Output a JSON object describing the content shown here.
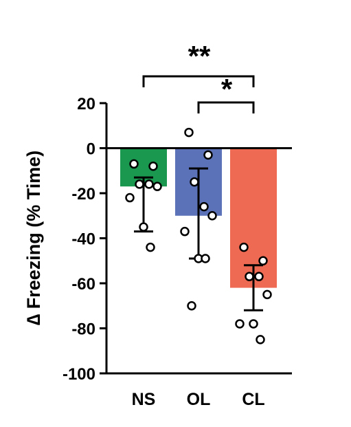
{
  "chart_data": {
    "type": "bar",
    "title": "",
    "xlabel": "",
    "ylabel": "∆ Freezing (% Time)",
    "ylim": [
      -100,
      20
    ],
    "yticks": [
      20,
      0,
      -20,
      -40,
      -60,
      -80,
      -100
    ],
    "categories": [
      "NS",
      "OL",
      "CL"
    ],
    "values": [
      -17,
      -30,
      -62
    ],
    "error_bars": [
      {
        "low": -37,
        "high": -13
      },
      {
        "low": -49,
        "high": -9
      },
      {
        "low": -72,
        "high": -52
      }
    ],
    "points": [
      [
        -7,
        -8,
        -16,
        -16,
        -17,
        -22,
        -35,
        -44
      ],
      [
        7,
        -3,
        -15,
        -26,
        -30,
        -37,
        -49,
        -49,
        -70
      ],
      [
        -44,
        -50,
        -57,
        -57,
        -65,
        -78,
        -78,
        -85
      ]
    ],
    "colors": [
      "#1a9850",
      "#5b72b8",
      "#ef6a52"
    ],
    "significance": [
      {
        "from": "NS",
        "to": "CL",
        "label": "**"
      },
      {
        "from": "OL",
        "to": "CL",
        "label": "*"
      }
    ]
  }
}
